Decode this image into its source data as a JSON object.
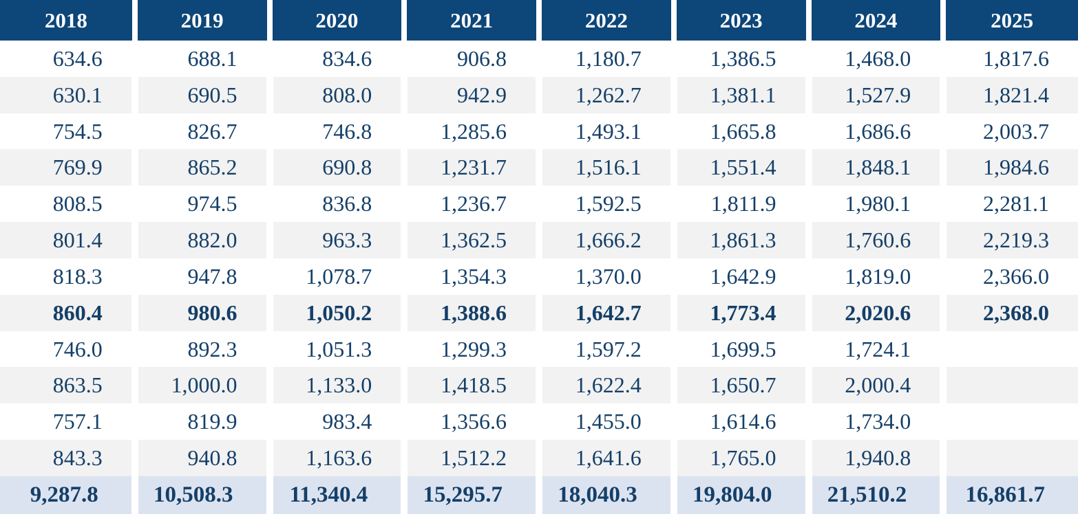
{
  "chart_data": {
    "type": "table",
    "columns": [
      "2018",
      "2019",
      "2020",
      "2021",
      "2022",
      "2023",
      "2024",
      "2025"
    ],
    "rows": [
      {
        "values": [
          "634.6",
          "688.1",
          "834.6",
          "906.8",
          "1,180.7",
          "1,386.5",
          "1,468.0",
          "1,817.6"
        ],
        "bold": false
      },
      {
        "values": [
          "630.1",
          "690.5",
          "808.0",
          "942.9",
          "1,262.7",
          "1,381.1",
          "1,527.9",
          "1,821.4"
        ],
        "bold": false
      },
      {
        "values": [
          "754.5",
          "826.7",
          "746.8",
          "1,285.6",
          "1,493.1",
          "1,665.8",
          "1,686.6",
          "2,003.7"
        ],
        "bold": false
      },
      {
        "values": [
          "769.9",
          "865.2",
          "690.8",
          "1,231.7",
          "1,516.1",
          "1,551.4",
          "1,848.1",
          "1,984.6"
        ],
        "bold": false
      },
      {
        "values": [
          "808.5",
          "974.5",
          "836.8",
          "1,236.7",
          "1,592.5",
          "1,811.9",
          "1,980.1",
          "2,281.1"
        ],
        "bold": false
      },
      {
        "values": [
          "801.4",
          "882.0",
          "963.3",
          "1,362.5",
          "1,666.2",
          "1,861.3",
          "1,760.6",
          "2,219.3"
        ],
        "bold": false
      },
      {
        "values": [
          "818.3",
          "947.8",
          "1,078.7",
          "1,354.3",
          "1,370.0",
          "1,642.9",
          "1,819.0",
          "2,366.0"
        ],
        "bold": false
      },
      {
        "values": [
          "860.4",
          "980.6",
          "1,050.2",
          "1,388.6",
          "1,642.7",
          "1,773.4",
          "2,020.6",
          "2,368.0"
        ],
        "bold": true
      },
      {
        "values": [
          "746.0",
          "892.3",
          "1,051.3",
          "1,299.3",
          "1,597.2",
          "1,699.5",
          "1,724.1",
          ""
        ],
        "bold": false
      },
      {
        "values": [
          "863.5",
          "1,000.0",
          "1,133.0",
          "1,418.5",
          "1,622.4",
          "1,650.7",
          "2,000.4",
          ""
        ],
        "bold": false
      },
      {
        "values": [
          "757.1",
          "819.9",
          "983.4",
          "1,356.6",
          "1,455.0",
          "1,614.6",
          "1,734.0",
          ""
        ],
        "bold": false
      },
      {
        "values": [
          "843.3",
          "940.8",
          "1,163.6",
          "1,512.2",
          "1,641.6",
          "1,765.0",
          "1,940.8",
          ""
        ],
        "bold": false
      }
    ],
    "totals": [
      "9,287.8",
      "10,508.3",
      "11,340.4",
      "15,295.7",
      "18,040.3",
      "19,804.0",
      "21,510.2",
      "16,861.7"
    ]
  },
  "colors": {
    "header_bg": "#0D4679",
    "header_text": "#FFFFFF",
    "body_text": "#143F68",
    "row_even_bg": "#F2F2F2",
    "row_odd_bg": "#FFFFFF",
    "totals_bg": "#DCE3F0",
    "separator": "#FFFFFF"
  }
}
